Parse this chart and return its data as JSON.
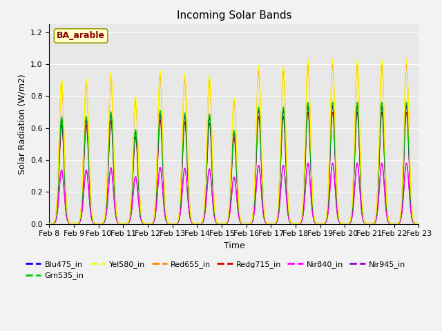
{
  "title": "Incoming Solar Bands",
  "xlabel": "Time",
  "ylabel": "Solar Radiation (W/m2)",
  "annotation": "BA_arable",
  "ylim": [
    0,
    1.25
  ],
  "yticks": [
    0.0,
    0.2,
    0.4,
    0.6,
    0.8,
    1.0,
    1.2
  ],
  "days": 15,
  "day_peaks": [
    0.91,
    0.91,
    0.95,
    0.8,
    0.96,
    0.94,
    0.93,
    0.79,
    0.99,
    0.99,
    1.03,
    1.03,
    1.03,
    1.03,
    1.03
  ],
  "band_peak_fractions": {
    "Yel580_in": 1.0,
    "Red655_in": 0.97,
    "Redg715_in": 0.68,
    "Grn535_in": 0.74,
    "Blu475_in": 0.72,
    "Nir840_in": 0.37,
    "Nir945_in": 0.37
  },
  "band_colors": {
    "Blu475_in": "#0000ee",
    "Grn535_in": "#00cc00",
    "Yel580_in": "#ffff00",
    "Red655_in": "#ff8800",
    "Redg715_in": "#cc0000",
    "Nir840_in": "#ff00ff",
    "Nir945_in": "#9900cc"
  },
  "legend_entries": [
    {
      "label": "Blu475_in",
      "color": "#0000ee"
    },
    {
      "label": "Grn535_in",
      "color": "#00cc00"
    },
    {
      "label": "Yel580_in",
      "color": "#ffff00"
    },
    {
      "label": "Red655_in",
      "color": "#ff8800"
    },
    {
      "label": "Redg715_in",
      "color": "#cc0000"
    },
    {
      "label": "Nir840_in",
      "color": "#ff00ff"
    },
    {
      "label": "Nir945_in",
      "color": "#9900cc"
    }
  ],
  "fig_facecolor": "#f2f2f2",
  "ax_facecolor": "#e8e8e8",
  "grid_color": "#ffffff",
  "title_fontsize": 11,
  "label_fontsize": 9,
  "tick_fontsize": 8
}
